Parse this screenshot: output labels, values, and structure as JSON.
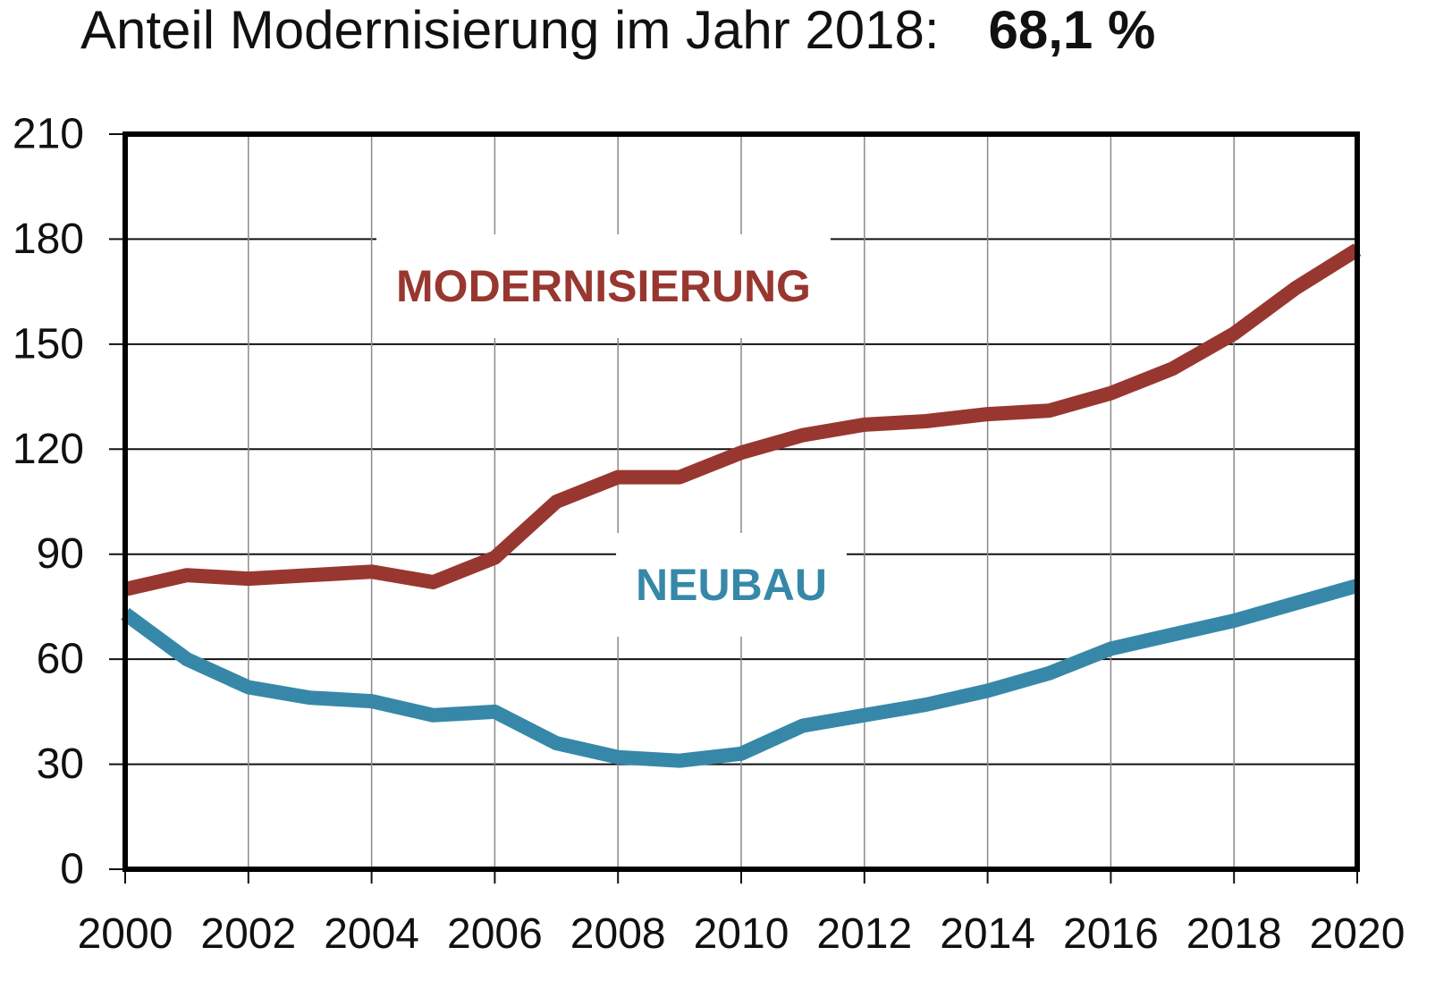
{
  "chart_data": {
    "type": "line",
    "title": "Anteil Modernisierung im Jahr 2018:",
    "title_value": "68,1 %",
    "xlabel": "",
    "ylabel": "",
    "xlim": [
      2000,
      2020
    ],
    "ylim": [
      0,
      210
    ],
    "y_ticks": [
      0,
      30,
      60,
      90,
      120,
      150,
      180,
      210
    ],
    "x_ticks": [
      2000,
      2002,
      2004,
      2006,
      2008,
      2010,
      2012,
      2014,
      2016,
      2018,
      2020
    ],
    "y_tick_labels": [
      "0",
      "30",
      "60",
      "90",
      "120",
      "150",
      "180",
      "210"
    ],
    "x_tick_labels": [
      "2000",
      "2002",
      "2004",
      "2006",
      "2008",
      "2010",
      "2012",
      "2014",
      "2016",
      "2018",
      "2020"
    ],
    "grid": true,
    "legend": "inline labels",
    "x": [
      2000,
      2001,
      2002,
      2003,
      2004,
      2005,
      2006,
      2007,
      2008,
      2009,
      2010,
      2011,
      2012,
      2013,
      2014,
      2015,
      2016,
      2017,
      2018,
      2019,
      2020
    ],
    "series": [
      {
        "name": "MODERNISIERUNG",
        "color": "#983730",
        "values": [
          80,
          84,
          83,
          84,
          85,
          82,
          89,
          105,
          112,
          112,
          119,
          124,
          127,
          128,
          130,
          131,
          136,
          143,
          153,
          166,
          177
        ]
      },
      {
        "name": "NEUBAU",
        "color": "#3788a8",
        "values": [
          73,
          60,
          52,
          49,
          48,
          44,
          45,
          36,
          32,
          31,
          33,
          41,
          44,
          47,
          51,
          56,
          63,
          67,
          71,
          76,
          81
        ]
      }
    ]
  }
}
